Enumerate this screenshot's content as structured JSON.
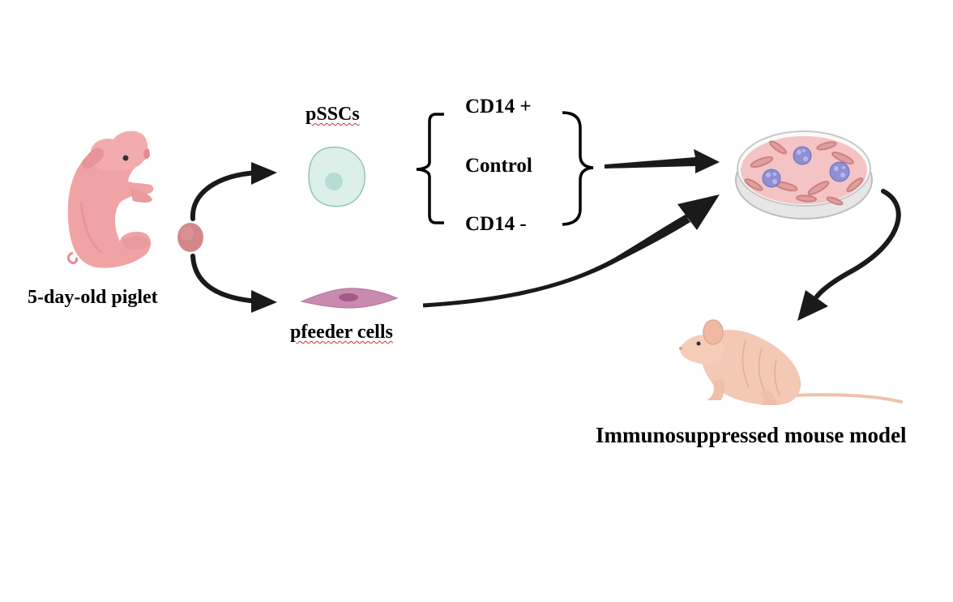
{
  "labels": {
    "piglet": "5-day-old piglet",
    "pssc": "pSSCs",
    "feeder": "pfeeder cells",
    "cd14_pos": "CD14 +",
    "control": "Control",
    "cd14_neg": "CD14 -",
    "mouse": "Immunosuppressed mouse model"
  },
  "colors": {
    "arrow": "#1a1a1a",
    "piglet_skin": "#f0a3a5",
    "tissue": "#d4878a",
    "pssc_fill": "#dcefe9",
    "pssc_nucleus": "#b5ddd4",
    "feeder_fill": "#c98ab0",
    "feeder_nucleus": "#a05b86",
    "dish_rim": "#bdbdbd",
    "dish_medium": "#f4c4c4",
    "colony": "#8f8fd6",
    "mouse_skin": "#f3c8b4"
  },
  "icons": [
    "piglet-icon",
    "tissue-icon",
    "pssc-cell-icon",
    "feeder-cell-icon",
    "culture-dish-icon",
    "mouse-icon"
  ]
}
